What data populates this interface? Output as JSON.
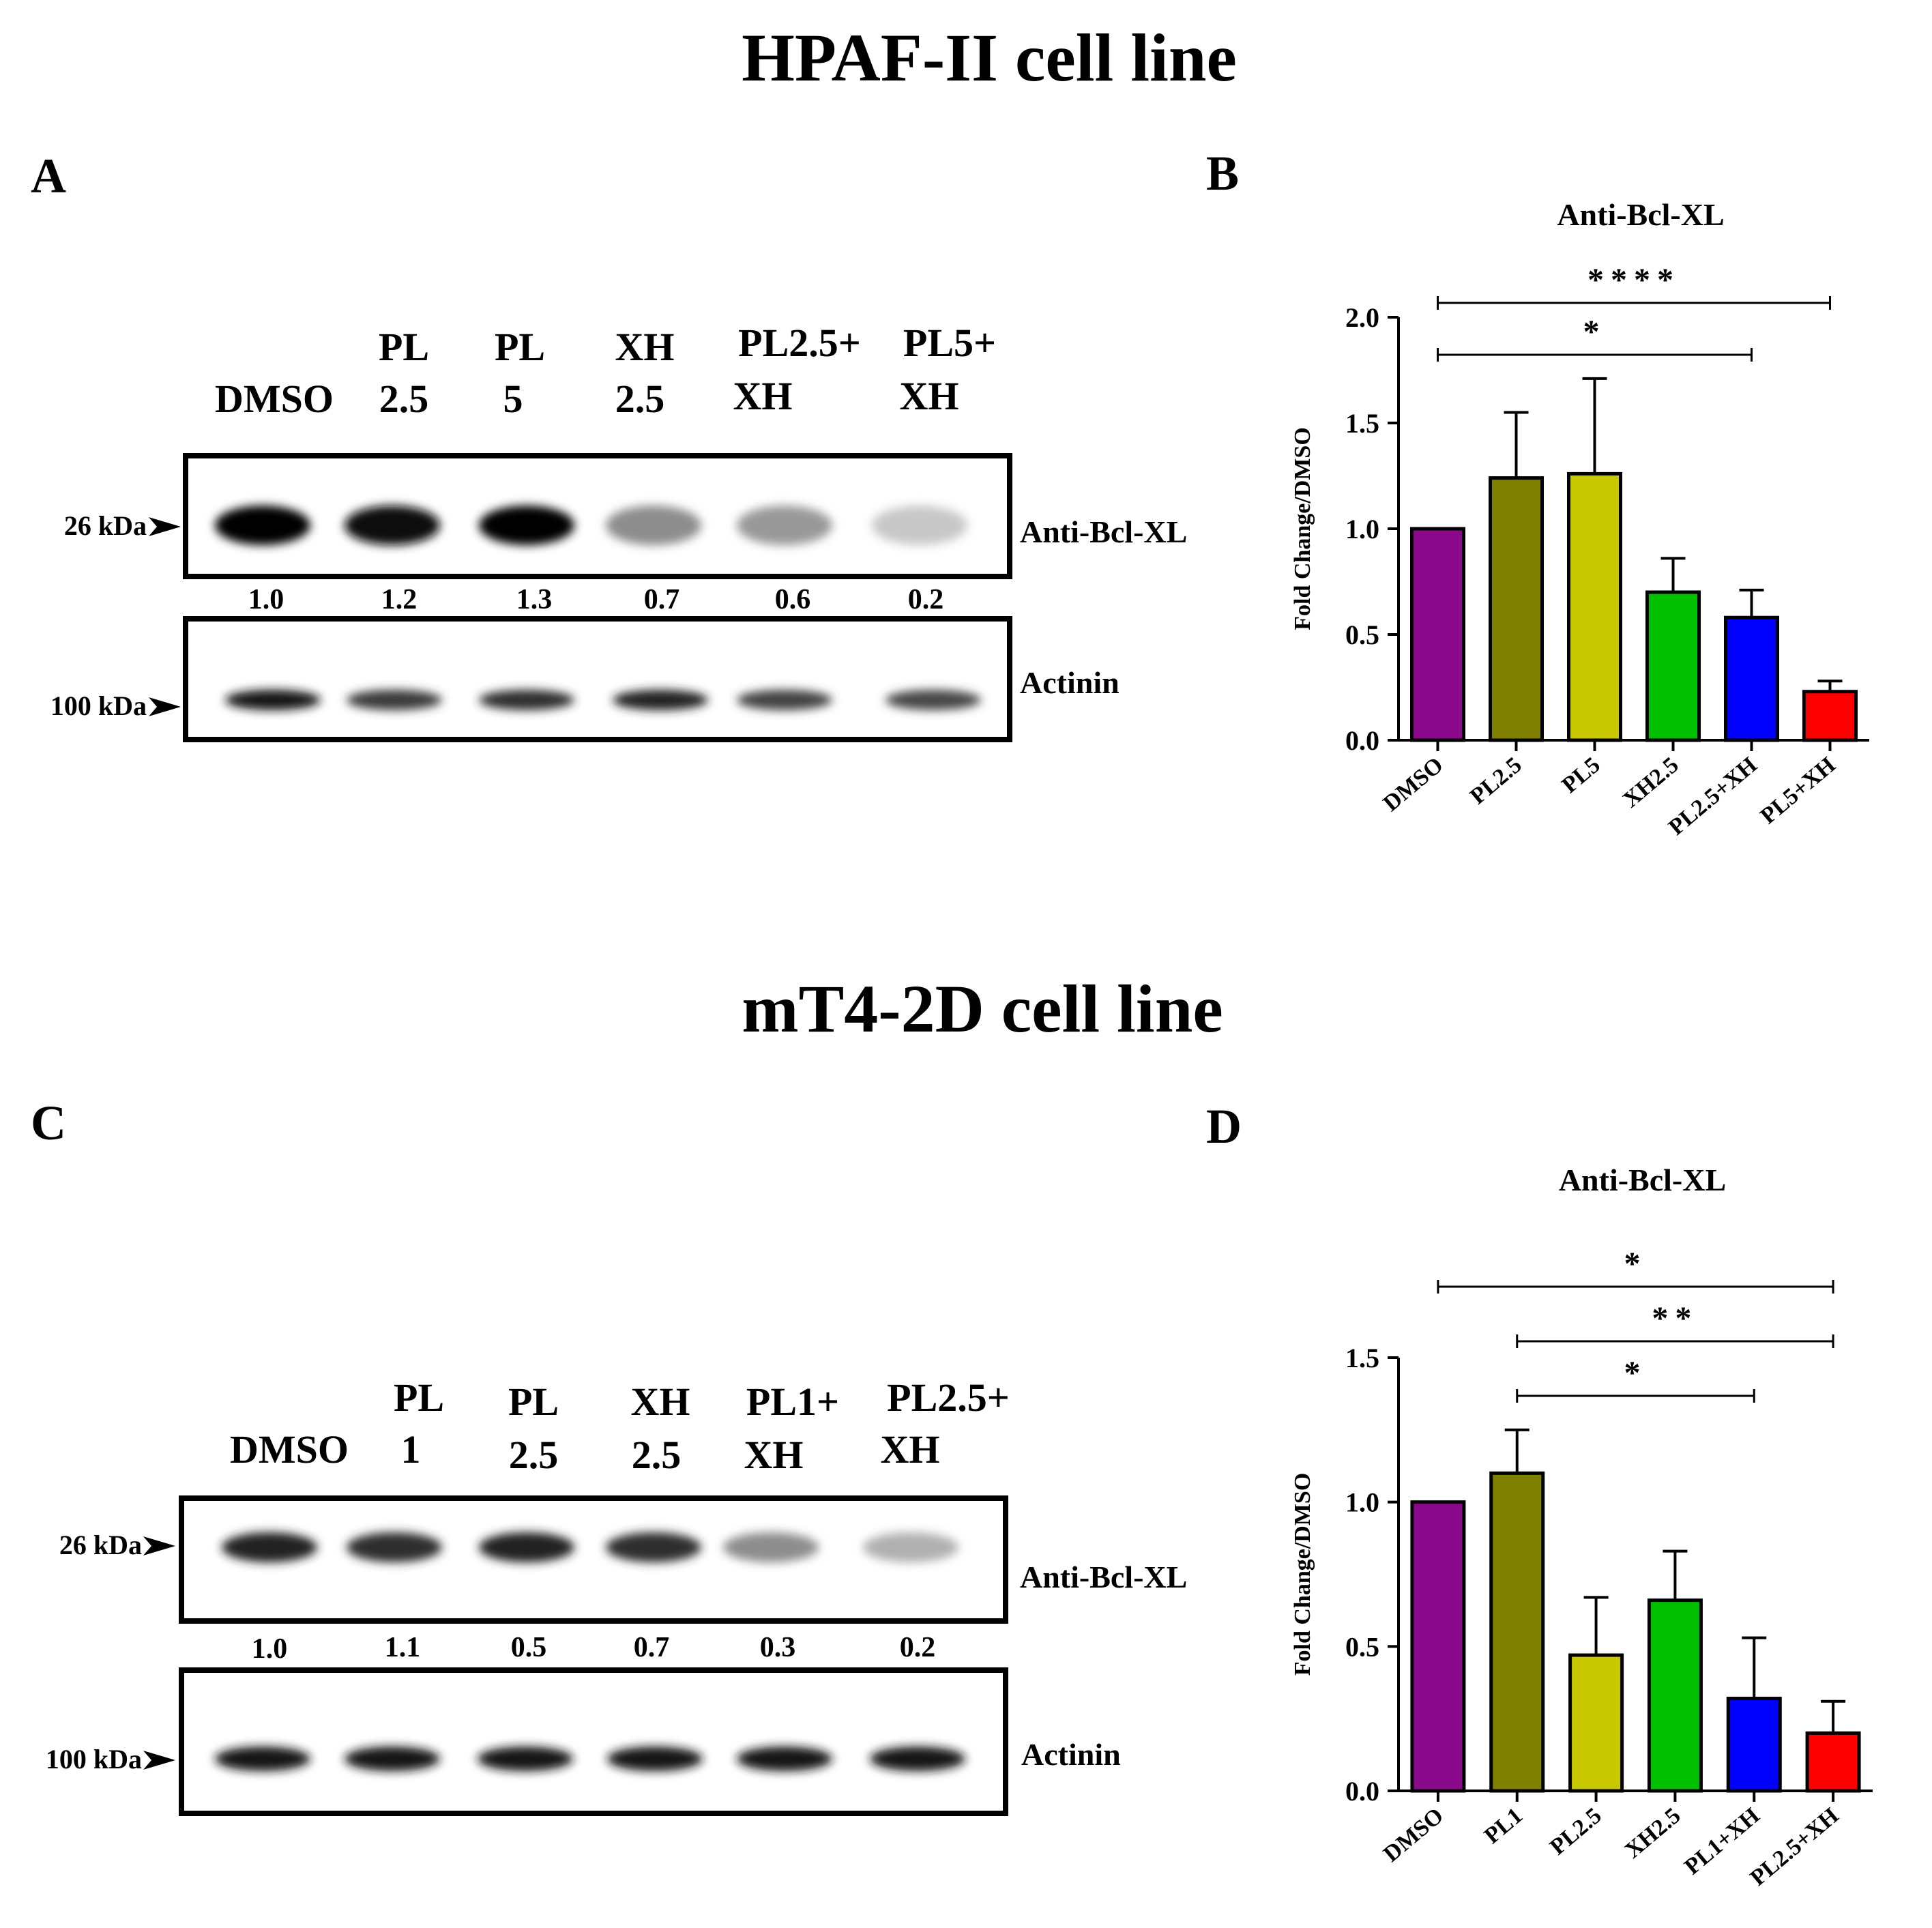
{
  "sections": [
    {
      "title": "HPAF-II cell line",
      "blot": {
        "panel_label": "A",
        "lanes": [
          {
            "line1": "",
            "line2": "DMSO"
          },
          {
            "line1": "PL",
            "line2": "2.5"
          },
          {
            "line1": "PL",
            "line2": "5"
          },
          {
            "line1": "XH",
            "line2": "2.5"
          },
          {
            "line1": "PL2.5+",
            "line2": "XH"
          },
          {
            "line1": "PL5+",
            "line2": "XH"
          }
        ],
        "top_marker": "26 kDa",
        "bottom_marker": "100 kDa",
        "top_label": "Anti-Bcl-XL",
        "bottom_label": "Actinin",
        "quant": [
          "1.0",
          "1.2",
          "1.3",
          "0.7",
          "0.6",
          "0.2"
        ],
        "band_intensity": [
          1.0,
          0.95,
          1.0,
          0.4,
          0.35,
          0.15
        ]
      },
      "chart_panel_label": "B"
    },
    {
      "title": "mT4-2D cell line",
      "blot": {
        "panel_label": "C",
        "lanes": [
          {
            "line1": "",
            "line2": "DMSO"
          },
          {
            "line1": "PL",
            "line2": "1"
          },
          {
            "line1": "PL",
            "line2": "2.5"
          },
          {
            "line1": "XH",
            "line2": "2.5"
          },
          {
            "line1": "PL1+",
            "line2": "XH"
          },
          {
            "line1": "PL2.5+",
            "line2": "XH"
          }
        ],
        "top_marker": "26 kDa",
        "bottom_marker": "100 kDa",
        "top_label": "Anti-Bcl-XL",
        "bottom_label": "Actinin",
        "quant": [
          "1.0",
          "1.1",
          "0.5",
          "0.7",
          "0.3",
          "0.2"
        ],
        "band_intensity": [
          0.85,
          0.8,
          0.85,
          0.8,
          0.4,
          0.25
        ]
      },
      "chart_panel_label": "D"
    }
  ],
  "chart_data": [
    {
      "type": "bar",
      "title": "Anti-Bcl-XL",
      "xlabel": "",
      "ylabel": "Fold Change/DMSO",
      "categories": [
        "DMSO",
        "PL2.5",
        "PL5",
        "XH2.5",
        "PL2.5+XH",
        "PL5+XH"
      ],
      "values": [
        1.0,
        1.24,
        1.26,
        0.7,
        0.58,
        0.23
      ],
      "errors": [
        0.0,
        0.31,
        0.45,
        0.16,
        0.13,
        0.05
      ],
      "colors": [
        "#8b0a8b",
        "#808000",
        "#c8c800",
        "#00c000",
        "#0000ff",
        "#ff0000"
      ],
      "ylim": [
        0,
        2.0
      ],
      "yticks": [
        "0.0",
        "0.5",
        "1.0",
        "1.5",
        "2.0"
      ],
      "significance": [
        {
          "from": "DMSO",
          "to": "PL5+XH",
          "label": "****"
        },
        {
          "from": "DMSO",
          "to": "PL2.5+XH",
          "label": "*"
        }
      ]
    },
    {
      "type": "bar",
      "title": "Anti-Bcl-XL",
      "xlabel": "",
      "ylabel": "Fold Change/DMSO",
      "categories": [
        "DMSO",
        "PL1",
        "PL2.5",
        "XH2.5",
        "PL1+XH",
        "PL2.5+XH"
      ],
      "values": [
        1.0,
        1.1,
        0.47,
        0.66,
        0.32,
        0.2
      ],
      "errors": [
        0.0,
        0.15,
        0.2,
        0.17,
        0.21,
        0.11
      ],
      "colors": [
        "#8b0a8b",
        "#808000",
        "#c8c800",
        "#00c000",
        "#0000ff",
        "#ff0000"
      ],
      "ylim": [
        0,
        1.5
      ],
      "yticks": [
        "0.0",
        "0.5",
        "1.0",
        "1.5"
      ],
      "significance": [
        {
          "from": "DMSO",
          "to": "PL2.5+XH",
          "label": "*"
        },
        {
          "from": "PL1",
          "to": "PL2.5+XH",
          "label": "**"
        },
        {
          "from": "PL1",
          "to": "PL1+XH",
          "label": "*"
        }
      ]
    }
  ]
}
